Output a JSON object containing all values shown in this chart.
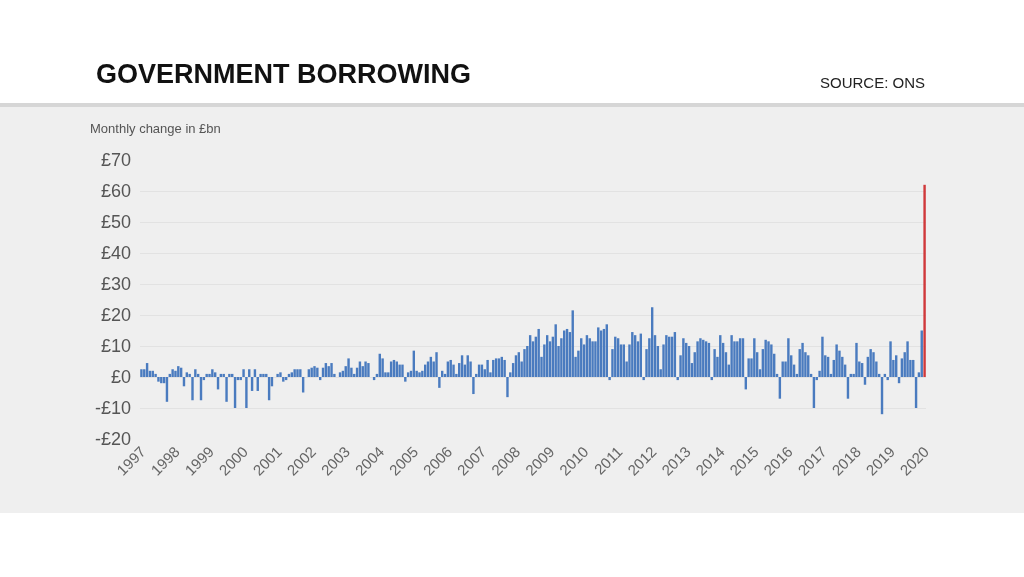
{
  "chart_data": {
    "type": "bar",
    "title": "GOVERNMENT BORROWING",
    "ylabel": "Monthly change in £bn",
    "annotations": [
      "SOURCE: ONS"
    ],
    "categories": [
      "1997",
      null,
      null,
      null,
      null,
      null,
      null,
      null,
      null,
      null,
      null,
      null,
      "1998",
      null,
      null,
      null,
      null,
      null,
      null,
      null,
      null,
      null,
      null,
      null,
      "1999",
      null,
      null,
      null,
      null,
      null,
      null,
      null,
      null,
      null,
      null,
      null,
      "2000",
      null,
      null,
      null,
      null,
      null,
      null,
      null,
      null,
      null,
      null,
      null,
      "2001",
      null,
      null,
      null,
      null,
      null,
      null,
      null,
      null,
      null,
      null,
      null,
      "2002",
      null,
      null,
      null,
      null,
      null,
      null,
      null,
      null,
      null,
      null,
      null,
      "2003",
      null,
      null,
      null,
      null,
      null,
      null,
      null,
      null,
      null,
      null,
      null,
      "2004",
      null,
      null,
      null,
      null,
      null,
      null,
      null,
      null,
      null,
      null,
      null,
      "2005",
      null,
      null,
      null,
      null,
      null,
      null,
      null,
      null,
      null,
      null,
      null,
      "2006",
      null,
      null,
      null,
      null,
      null,
      null,
      null,
      null,
      null,
      null,
      null,
      "2007",
      null,
      null,
      null,
      null,
      null,
      null,
      null,
      null,
      null,
      null,
      null,
      "2008",
      null,
      null,
      null,
      null,
      null,
      null,
      null,
      null,
      null,
      null,
      null,
      "2009",
      null,
      null,
      null,
      null,
      null,
      null,
      null,
      null,
      null,
      null,
      null,
      "2010",
      null,
      null,
      null,
      null,
      null,
      null,
      null,
      null,
      null,
      null,
      null,
      "2011",
      null,
      null,
      null,
      null,
      null,
      null,
      null,
      null,
      null,
      null,
      null,
      "2012",
      null,
      null,
      null,
      null,
      null,
      null,
      null,
      null,
      null,
      null,
      null,
      "2013",
      null,
      null,
      null,
      null,
      null,
      null,
      null,
      null,
      null,
      null,
      null,
      "2014",
      null,
      null,
      null,
      null,
      null,
      null,
      null,
      null,
      null,
      null,
      null,
      "2015",
      null,
      null,
      null,
      null,
      null,
      null,
      null,
      null,
      null,
      null,
      null,
      "2016",
      null,
      null,
      null,
      null,
      null,
      null,
      null,
      null,
      null,
      null,
      null,
      "2017",
      null,
      null,
      null,
      null,
      null,
      null,
      null,
      null,
      null,
      null,
      null,
      "2018",
      null,
      null,
      null,
      null,
      null,
      null,
      null,
      null,
      null,
      null,
      null,
      "2019",
      null,
      null,
      null,
      null,
      null,
      null,
      null,
      null,
      null,
      null,
      null,
      "2020"
    ],
    "values": [
      2.5,
      2.5,
      4.5,
      2,
      2,
      1,
      -1.5,
      -2,
      -2,
      -8,
      1,
      2.5,
      2,
      3.5,
      3,
      -3,
      1.5,
      1,
      -7.5,
      2.5,
      1,
      -7.5,
      -1,
      1,
      1,
      2.5,
      1.5,
      -4,
      1,
      1,
      -8,
      1,
      1,
      -10,
      -1,
      -1,
      2.5,
      -10,
      2.5,
      -4.5,
      2.5,
      -4.5,
      1,
      1,
      1,
      -7.5,
      -3,
      0,
      1,
      1.5,
      -1.5,
      -1,
      1,
      1.5,
      2.5,
      2.5,
      2.5,
      -5,
      0,
      2.5,
      3,
      3.5,
      3,
      -1,
      3,
      4.5,
      3.5,
      4.5,
      1,
      0,
      1.5,
      2,
      3.5,
      6,
      3,
      1,
      3,
      5,
      3.5,
      5,
      4.5,
      0,
      -1,
      1,
      7.5,
      6,
      1.5,
      1.5,
      5,
      5.5,
      5,
      4,
      4,
      -1.5,
      1.5,
      2,
      8.5,
      2,
      1.5,
      2,
      4,
      5,
      6.5,
      5,
      8,
      -3.5,
      2,
      1,
      5,
      5.5,
      4,
      1,
      4.5,
      7,
      4,
      7,
      5,
      -5.5,
      1,
      4,
      4,
      2.5,
      5.5,
      1.5,
      5.5,
      6,
      6,
      6.5,
      5.5,
      -6.5,
      1.5,
      4.5,
      7,
      8,
      5,
      9,
      10,
      13.5,
      11.5,
      13,
      15.5,
      6.5,
      10.5,
      13.5,
      11.5,
      13,
      17,
      10,
      12.5,
      15,
      15.5,
      14.5,
      21.5,
      6.5,
      8.5,
      12.5,
      10.5,
      13.5,
      12.5,
      11.5,
      11.5,
      16,
      15,
      15.5,
      17,
      -1,
      9,
      13,
      12.5,
      10.5,
      10.5,
      5,
      10.5,
      14.5,
      13.5,
      11.5,
      14,
      -1,
      9,
      12.5,
      22.5,
      13.5,
      10,
      2.5,
      10.5,
      13.5,
      13,
      13,
      14.5,
      -1,
      7,
      12.5,
      11,
      10,
      4.5,
      8,
      11.5,
      12.5,
      12,
      11.5,
      11,
      -1,
      9,
      6.5,
      13.5,
      11,
      8,
      4,
      13.5,
      11.5,
      11.5,
      12.5,
      12.5,
      -4,
      6,
      6,
      12.5,
      8,
      2.5,
      9,
      12,
      11.5,
      10.5,
      7.5,
      1,
      -7,
      5,
      5,
      12.5,
      7,
      4,
      1,
      9,
      11,
      8,
      7,
      1,
      -10,
      -1,
      2,
      13,
      7,
      6.5,
      1,
      5.5,
      10.5,
      8.5,
      6.5,
      4,
      -7,
      1,
      1,
      11,
      5,
      4.5,
      -2.5,
      6.5,
      9,
      8,
      5,
      1,
      -12,
      1,
      -1,
      11.5,
      5.5,
      7,
      -2,
      6,
      8,
      11.5,
      5.5,
      5.5,
      -10,
      1.5,
      15,
      62
    ],
    "colors": [
      "#4a7bbf",
      "#4a7bbf",
      "#4a7bbf",
      "#4a7bbf",
      "#4a7bbf",
      "#4a7bbf",
      "#4a7bbf",
      "#4a7bbf",
      "#4a7bbf",
      "#4a7bbf",
      "#4a7bbf",
      "#4a7bbf",
      "#4a7bbf",
      "#4a7bbf",
      "#4a7bbf",
      "#4a7bbf",
      "#4a7bbf",
      "#4a7bbf",
      "#4a7bbf",
      "#4a7bbf",
      "#4a7bbf",
      "#4a7bbf",
      "#4a7bbf",
      "#4a7bbf",
      "#4a7bbf",
      "#4a7bbf",
      "#4a7bbf",
      "#4a7bbf",
      "#4a7bbf",
      "#4a7bbf",
      "#4a7bbf",
      "#4a7bbf",
      "#4a7bbf",
      "#4a7bbf",
      "#4a7bbf",
      "#4a7bbf",
      "#4a7bbf",
      "#4a7bbf",
      "#4a7bbf",
      "#4a7bbf",
      "#4a7bbf",
      "#4a7bbf",
      "#4a7bbf",
      "#4a7bbf",
      "#4a7bbf",
      "#4a7bbf",
      "#4a7bbf",
      "#4a7bbf",
      "#4a7bbf",
      "#4a7bbf",
      "#4a7bbf",
      "#4a7bbf",
      "#4a7bbf",
      "#4a7bbf",
      "#4a7bbf",
      "#4a7bbf",
      "#4a7bbf",
      "#4a7bbf",
      "#4a7bbf",
      "#4a7bbf",
      "#4a7bbf",
      "#4a7bbf",
      "#4a7bbf",
      "#4a7bbf",
      "#4a7bbf",
      "#4a7bbf",
      "#4a7bbf",
      "#4a7bbf",
      "#4a7bbf",
      "#4a7bbf",
      "#4a7bbf",
      "#4a7bbf",
      "#4a7bbf",
      "#4a7bbf",
      "#4a7bbf",
      "#4a7bbf",
      "#4a7bbf",
      "#4a7bbf",
      "#4a7bbf",
      "#4a7bbf",
      "#4a7bbf",
      "#4a7bbf",
      "#4a7bbf",
      "#4a7bbf",
      "#4a7bbf",
      "#4a7bbf",
      "#4a7bbf",
      "#4a7bbf",
      "#4a7bbf",
      "#4a7bbf",
      "#4a7bbf",
      "#4a7bbf",
      "#4a7bbf",
      "#4a7bbf",
      "#4a7bbf",
      "#4a7bbf",
      "#4a7bbf",
      "#4a7bbf",
      "#4a7bbf",
      "#4a7bbf",
      "#4a7bbf",
      "#4a7bbf",
      "#4a7bbf",
      "#4a7bbf",
      "#4a7bbf",
      "#4a7bbf",
      "#4a7bbf",
      "#4a7bbf",
      "#4a7bbf",
      "#4a7bbf",
      "#4a7bbf",
      "#4a7bbf",
      "#4a7bbf",
      "#4a7bbf",
      "#4a7bbf",
      "#4a7bbf",
      "#4a7bbf",
      "#4a7bbf",
      "#4a7bbf",
      "#4a7bbf",
      "#4a7bbf",
      "#4a7bbf",
      "#4a7bbf",
      "#4a7bbf",
      "#4a7bbf",
      "#4a7bbf",
      "#4a7bbf",
      "#4a7bbf",
      "#4a7bbf",
      "#4a7bbf",
      "#4a7bbf",
      "#4a7bbf",
      "#4a7bbf",
      "#4a7bbf",
      "#4a7bbf",
      "#4a7bbf",
      "#4a7bbf",
      "#4a7bbf",
      "#4a7bbf",
      "#4a7bbf",
      "#4a7bbf",
      "#4a7bbf",
      "#4a7bbf",
      "#4a7bbf",
      "#4a7bbf",
      "#4a7bbf",
      "#4a7bbf",
      "#4a7bbf",
      "#4a7bbf",
      "#4a7bbf",
      "#4a7bbf",
      "#4a7bbf",
      "#4a7bbf",
      "#4a7bbf",
      "#4a7bbf",
      "#4a7bbf",
      "#4a7bbf",
      "#4a7bbf",
      "#4a7bbf",
      "#4a7bbf",
      "#4a7bbf",
      "#4a7bbf",
      "#4a7bbf",
      "#4a7bbf",
      "#4a7bbf",
      "#4a7bbf",
      "#4a7bbf",
      "#4a7bbf",
      "#4a7bbf",
      "#4a7bbf",
      "#4a7bbf",
      "#4a7bbf",
      "#4a7bbf",
      "#4a7bbf",
      "#4a7bbf",
      "#4a7bbf",
      "#4a7bbf",
      "#4a7bbf",
      "#4a7bbf",
      "#4a7bbf",
      "#4a7bbf",
      "#4a7bbf",
      "#4a7bbf",
      "#4a7bbf",
      "#4a7bbf",
      "#4a7bbf",
      "#4a7bbf",
      "#4a7bbf",
      "#4a7bbf",
      "#4a7bbf",
      "#4a7bbf",
      "#4a7bbf",
      "#4a7bbf",
      "#4a7bbf",
      "#4a7bbf",
      "#4a7bbf",
      "#4a7bbf",
      "#4a7bbf",
      "#4a7bbf",
      "#4a7bbf",
      "#4a7bbf",
      "#4a7bbf",
      "#4a7bbf",
      "#4a7bbf",
      "#4a7bbf",
      "#4a7bbf",
      "#4a7bbf",
      "#4a7bbf",
      "#4a7bbf",
      "#4a7bbf",
      "#4a7bbf",
      "#4a7bbf",
      "#4a7bbf",
      "#4a7bbf",
      "#4a7bbf",
      "#4a7bbf",
      "#4a7bbf",
      "#4a7bbf",
      "#4a7bbf",
      "#4a7bbf",
      "#4a7bbf",
      "#4a7bbf",
      "#4a7bbf",
      "#4a7bbf",
      "#4a7bbf",
      "#4a7bbf",
      "#4a7bbf",
      "#4a7bbf",
      "#4a7bbf",
      "#4a7bbf",
      "#4a7bbf",
      "#4a7bbf",
      "#4a7bbf",
      "#4a7bbf",
      "#4a7bbf",
      "#4a7bbf",
      "#4a7bbf",
      "#4a7bbf",
      "#4a7bbf",
      "#4a7bbf",
      "#4a7bbf",
      "#4a7bbf",
      "#4a7bbf",
      "#4a7bbf",
      "#4a7bbf",
      "#4a7bbf",
      "#4a7bbf",
      "#4a7bbf",
      "#4a7bbf",
      "#4a7bbf",
      "#4a7bbf",
      "#4a7bbf",
      "#4a7bbf",
      "#4a7bbf",
      "#4a7bbf",
      "#4a7bbf",
      "#4a7bbf",
      "#4a7bbf",
      "#4a7bbf",
      "#4a7bbf",
      "#4a7bbf",
      "#4a7bbf",
      "#4a7bbf",
      "#4a7bbf",
      "#4a7bbf",
      "#4a7bbf",
      "#4a7bbf",
      "#4a7bbf",
      "#4a7bbf",
      "#4a7bbf",
      "#4a7bbf",
      "#4a7bbf",
      "#4a7bbf",
      "#4a7bbf",
      "#4a7bbf",
      "#4a7bbf",
      "#d0393b"
    ],
    "ylim": [
      -20,
      70
    ],
    "yticks": [
      {
        "value": -20,
        "label": "-£20"
      },
      {
        "value": -10,
        "label": "-£10"
      },
      {
        "value": 0,
        "label": "£0"
      },
      {
        "value": 10,
        "label": "£10"
      },
      {
        "value": 20,
        "label": "£20"
      },
      {
        "value": 30,
        "label": "£30"
      },
      {
        "value": 40,
        "label": "£40"
      },
      {
        "value": 50,
        "label": "£50"
      },
      {
        "value": 60,
        "label": "£60"
      },
      {
        "value": 70,
        "label": "£70"
      }
    ],
    "grid": "y"
  }
}
